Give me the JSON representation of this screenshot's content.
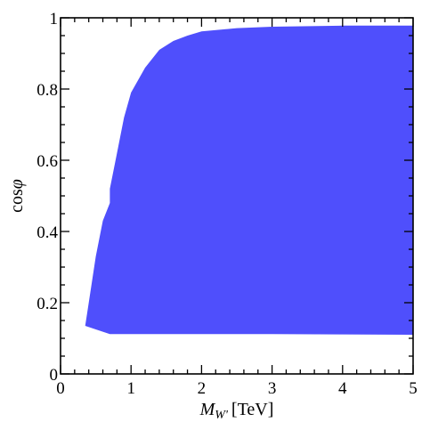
{
  "chart_data": {
    "type": "area",
    "xlabel": "M_W' [TeV]",
    "xlabel_parts": {
      "symbol": "M",
      "subscript": "W'",
      "unit": "[TeV]"
    },
    "ylabel": "cosφ",
    "ylabel_parts": {
      "text": "cos",
      "symbol": "φ"
    },
    "xlim": [
      0,
      5
    ],
    "ylim": [
      0,
      1
    ],
    "xticks": [
      0,
      1,
      2,
      3,
      4,
      5
    ],
    "yticks": [
      0,
      0.2,
      0.4,
      0.6,
      0.8,
      1
    ],
    "ytick_labels": [
      "0",
      "0.2",
      "0.4",
      "0.6",
      "0.8",
      "1"
    ],
    "grid": false,
    "fill_color": "#4f4ffc",
    "region": {
      "upper": [
        [
          0.35,
          0.135
        ],
        [
          0.4,
          0.2
        ],
        [
          0.5,
          0.33
        ],
        [
          0.6,
          0.43
        ],
        [
          0.7,
          0.48
        ],
        [
          0.7,
          0.52
        ],
        [
          0.8,
          0.62
        ],
        [
          0.9,
          0.72
        ],
        [
          1.0,
          0.79
        ],
        [
          1.2,
          0.86
        ],
        [
          1.4,
          0.91
        ],
        [
          1.6,
          0.935
        ],
        [
          1.8,
          0.95
        ],
        [
          2.0,
          0.962
        ],
        [
          2.5,
          0.971
        ],
        [
          3.0,
          0.975
        ],
        [
          4.0,
          0.978
        ],
        [
          5.0,
          0.978
        ]
      ],
      "lower": [
        [
          0.35,
          0.135
        ],
        [
          0.5,
          0.125
        ],
        [
          0.7,
          0.112
        ],
        [
          1.0,
          0.112
        ],
        [
          2.0,
          0.112
        ],
        [
          3.0,
          0.112
        ],
        [
          4.0,
          0.111
        ],
        [
          5.0,
          0.11
        ]
      ]
    }
  }
}
